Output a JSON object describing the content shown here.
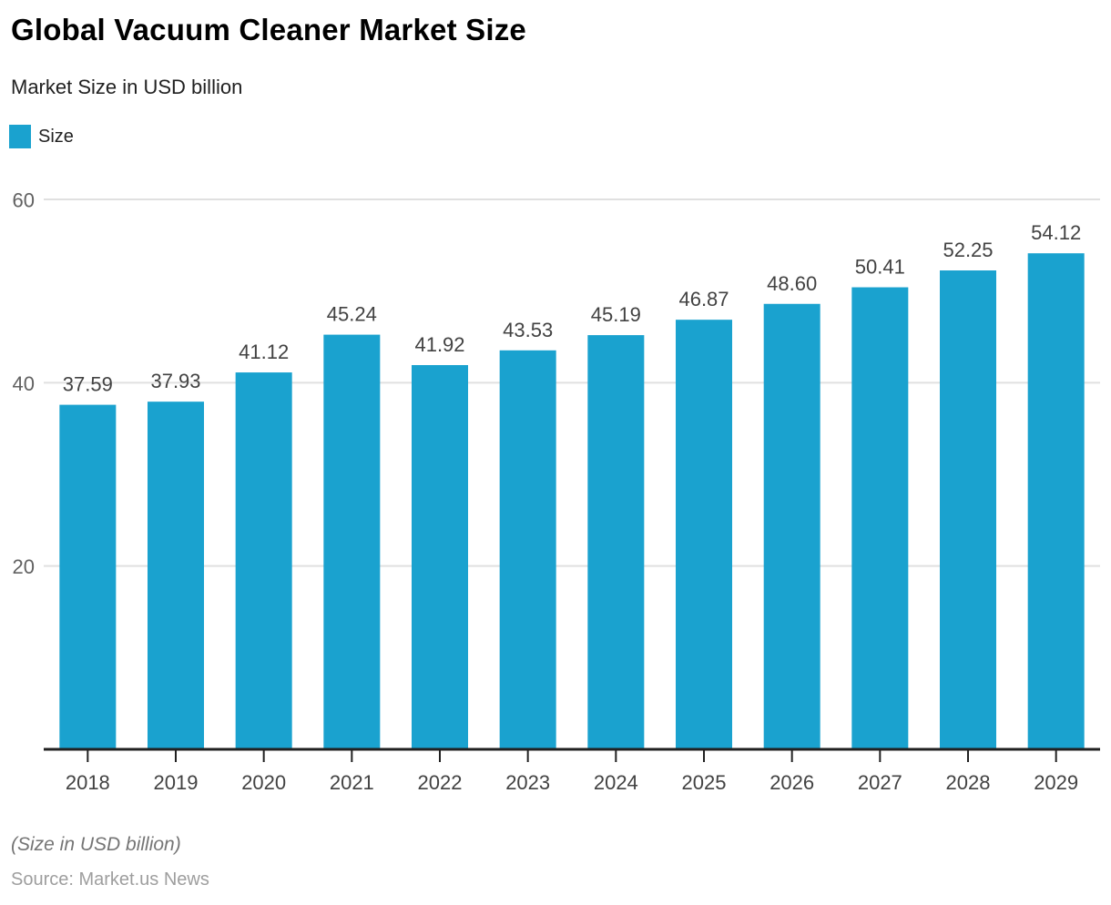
{
  "page": {
    "background": "#ffffff"
  },
  "header": {
    "title": "Global Vacuum Cleaner Market Size",
    "subtitle": "Market Size in USD billion"
  },
  "legend": {
    "label": "Size",
    "color": "#1aa2cf"
  },
  "chart_data": {
    "type": "bar",
    "title": "Global Vacuum Cleaner Market Size",
    "subtitle": "Market Size in USD billion",
    "xlabel": "",
    "ylabel": "",
    "categories": [
      "2018",
      "2019",
      "2020",
      "2021",
      "2022",
      "2023",
      "2024",
      "2025",
      "2026",
      "2027",
      "2028",
      "2029"
    ],
    "values": [
      37.59,
      37.93,
      41.12,
      45.24,
      41.92,
      43.53,
      45.19,
      46.87,
      48.6,
      50.41,
      52.25,
      54.12
    ],
    "value_labels": [
      "37.59",
      "37.93",
      "41.12",
      "45.24",
      "41.92",
      "43.53",
      "45.19",
      "46.87",
      "48.60",
      "50.41",
      "52.25",
      "54.12"
    ],
    "series_name": "Size",
    "ylim": [
      0,
      60
    ],
    "y_ticks": [
      20,
      40,
      60
    ],
    "grid": true,
    "legend_position": "top-left",
    "bar_color": "#1aa2cf",
    "grid_color": "#e0e0e0",
    "axis_color": "#212121",
    "y_tick_label_color": "#616161",
    "value_label_color": "#424242",
    "x_tick_label_color": "#424242"
  },
  "footer": {
    "note": "(Size in USD billion)",
    "source": "Source: Market.us News"
  }
}
